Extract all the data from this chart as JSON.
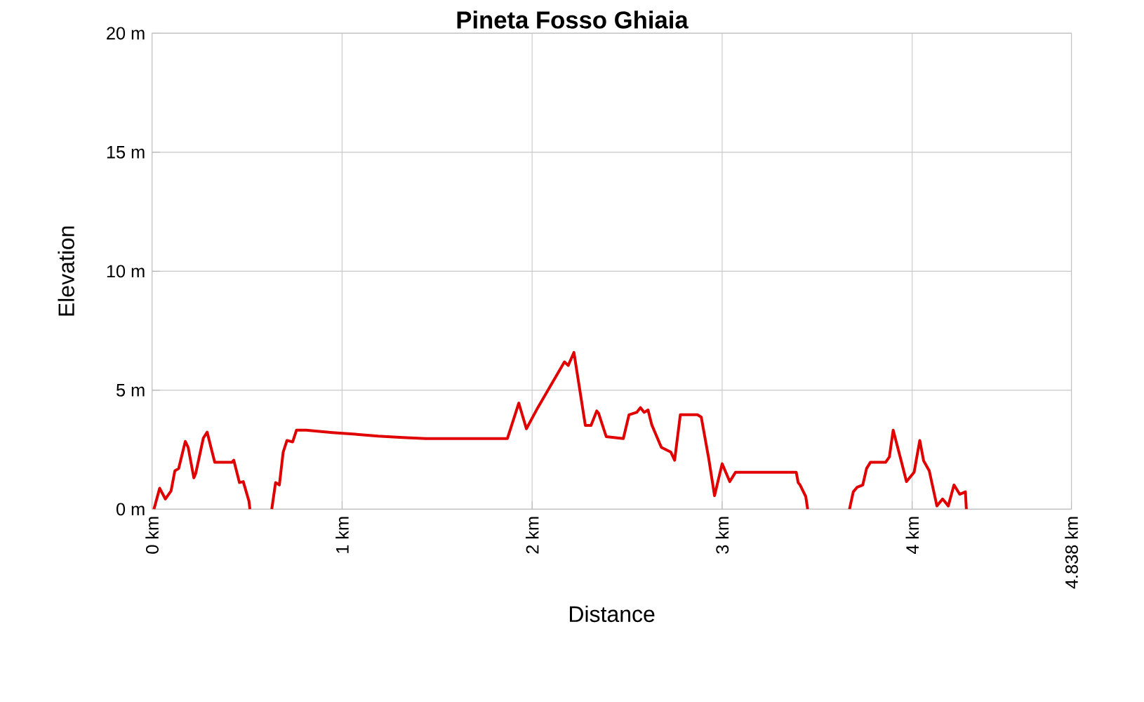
{
  "chart_data": {
    "type": "line",
    "title": "Pineta Fosso Ghiaia",
    "xlabel": "Distance",
    "ylabel": "Elevation",
    "x": [
      0.01,
      0.04,
      0.07,
      0.1,
      0.12,
      0.14,
      0.175,
      0.19,
      0.22,
      0.23,
      0.27,
      0.29,
      0.31,
      0.33,
      0.42,
      0.43,
      0.46,
      0.48,
      0.51,
      0.515,
      0.58,
      0.63,
      0.65,
      0.67,
      0.69,
      0.71,
      0.74,
      0.76,
      0.81,
      0.95,
      1.07,
      1.19,
      1.32,
      1.44,
      1.74,
      1.87,
      1.93,
      1.97,
      2.03,
      2.17,
      2.19,
      2.22,
      2.25,
      2.28,
      2.31,
      2.34,
      2.35,
      2.39,
      2.48,
      2.51,
      2.55,
      2.57,
      2.59,
      2.61,
      2.63,
      2.68,
      2.73,
      2.75,
      2.78,
      2.87,
      2.89,
      2.93,
      2.96,
      3.0,
      3.04,
      3.07,
      3.39,
      3.4,
      3.41,
      3.44,
      3.45,
      3.56,
      3.67,
      3.69,
      3.71,
      3.74,
      3.76,
      3.78,
      3.86,
      3.88,
      3.9,
      3.94,
      3.97,
      4.01,
      4.04,
      4.06,
      4.09,
      4.13,
      4.16,
      4.19,
      4.22,
      4.25,
      4.28,
      4.285
    ],
    "series": [
      {
        "color": "#e00000",
        "values": [
          0,
          0.88,
          0.43,
          0.77,
          1.61,
          1.71,
          2.85,
          2.6,
          1.32,
          1.51,
          2.99,
          3.24,
          2.6,
          1.97,
          1.97,
          2.06,
          1.12,
          1.16,
          0.34,
          0,
          null,
          0,
          1.12,
          1.02,
          2.4,
          2.89,
          2.83,
          3.32,
          3.32,
          3.22,
          3.15,
          3.07,
          3.01,
          2.97,
          2.97,
          2.97,
          4.46,
          3.38,
          4.27,
          6.19,
          6.04,
          6.59,
          5.06,
          3.52,
          3.52,
          4.13,
          4.03,
          3.05,
          2.97,
          3.97,
          4.07,
          4.27,
          4.07,
          4.17,
          3.54,
          2.6,
          2.4,
          2.06,
          3.97,
          3.97,
          3.87,
          2.1,
          0.57,
          1.91,
          1.16,
          1.55,
          1.55,
          1.12,
          1.02,
          0.53,
          0,
          null,
          0,
          0.73,
          0.92,
          1.02,
          1.71,
          1.97,
          1.97,
          2.2,
          3.32,
          2.1,
          1.16,
          1.55,
          2.89,
          2.04,
          1.61,
          0.14,
          0.43,
          0.14,
          1.02,
          0.63,
          0.73,
          0
        ]
      }
    ],
    "xlim": [
      0,
      4.838
    ],
    "ylim": [
      0,
      20
    ],
    "xticks": [
      {
        "value": 0,
        "label": "0 km"
      },
      {
        "value": 1,
        "label": "1 km"
      },
      {
        "value": 2,
        "label": "2 km"
      },
      {
        "value": 3,
        "label": "3 km"
      },
      {
        "value": 4,
        "label": "4 km"
      },
      {
        "value": 4.838,
        "label": "4.838 km"
      }
    ],
    "yticks": [
      {
        "value": 0,
        "label": "0 m"
      },
      {
        "value": 5,
        "label": "5 m"
      },
      {
        "value": 10,
        "label": "10 m"
      },
      {
        "value": 15,
        "label": "15 m"
      },
      {
        "value": 20,
        "label": "20 m"
      }
    ],
    "grid": true,
    "marker": "none",
    "line_style": "solid"
  }
}
